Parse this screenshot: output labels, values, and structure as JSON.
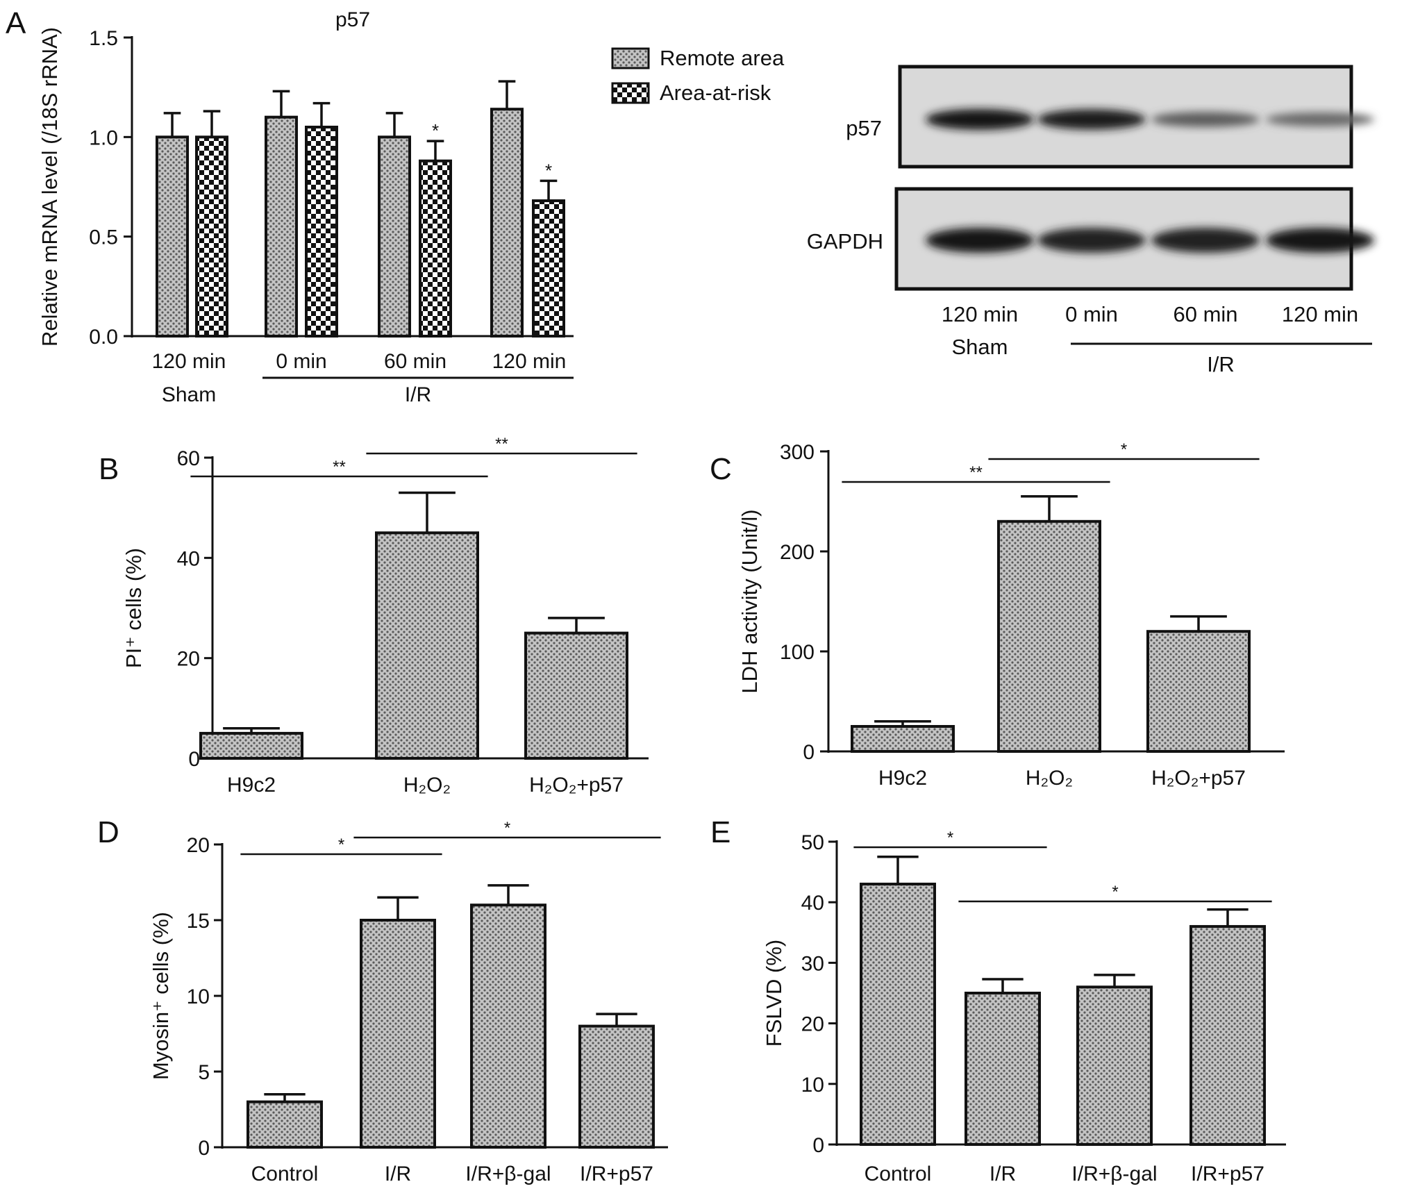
{
  "panel_letters": [
    "A",
    "B",
    "C",
    "D",
    "E"
  ],
  "blot": {
    "rows": [
      {
        "label": "p57",
        "intensity": [
          1.0,
          0.95,
          0.45,
          0.35
        ]
      },
      {
        "label": "GAPDH",
        "intensity": [
          1.0,
          0.9,
          0.9,
          1.0
        ]
      }
    ],
    "lanes": [
      "120 min",
      "0 min",
      "60 min",
      "120 min"
    ],
    "group_sham": "Sham",
    "group_ir": "I/R"
  },
  "chart_data": [
    {
      "panel": "A",
      "type": "bar",
      "title": "p57",
      "ylabel": "Relative mRNA level (/18S rRNA)",
      "ylim": [
        0,
        1.5
      ],
      "yticks": [
        "0.0",
        "0.5",
        "1.0",
        "1.5"
      ],
      "categories": [
        "120 min",
        "0 min",
        "60 min",
        "120 min"
      ],
      "groups": [
        {
          "label": "Sham",
          "from": 0,
          "to": 0
        },
        {
          "label": "I/R",
          "from": 1,
          "to": 3
        }
      ],
      "series": [
        {
          "name": "Remote area",
          "values": [
            1.0,
            1.1,
            1.0,
            1.14
          ],
          "errors": [
            0.12,
            0.13,
            0.12,
            0.14
          ],
          "sig": [
            "",
            "",
            "",
            ""
          ]
        },
        {
          "name": "Area-at-risk",
          "values": [
            1.0,
            1.05,
            0.88,
            0.68
          ],
          "errors": [
            0.13,
            0.12,
            0.1,
            0.1
          ],
          "sig": [
            "",
            "",
            "*",
            "*"
          ]
        }
      ],
      "legend": "top-right"
    },
    {
      "panel": "B",
      "type": "bar",
      "ylabel": "PI⁺ cells (%)",
      "ylim": [
        0,
        60
      ],
      "yticks": [
        "0",
        "20",
        "40",
        "60"
      ],
      "categories": [
        "H9c2",
        "H₂O₂",
        "H₂O₂+p57"
      ],
      "values": [
        5,
        45,
        25
      ],
      "errors": [
        1,
        8,
        3
      ],
      "comparisons": [
        {
          "from": 0,
          "to": 1,
          "label": "**"
        },
        {
          "from": 1,
          "to": 2,
          "label": "**"
        }
      ]
    },
    {
      "panel": "C",
      "type": "bar",
      "ylabel": "LDH activity (Unit/l)",
      "ylim": [
        0,
        300
      ],
      "yticks": [
        "0",
        "100",
        "200",
        "300"
      ],
      "categories": [
        "H9c2",
        "H₂O₂",
        "H₂O₂+p57"
      ],
      "values": [
        25,
        230,
        120
      ],
      "errors": [
        5,
        25,
        15
      ],
      "comparisons": [
        {
          "from": 0,
          "to": 1,
          "label": "**"
        },
        {
          "from": 1,
          "to": 2,
          "label": "*"
        }
      ]
    },
    {
      "panel": "D",
      "type": "bar",
      "ylabel": "Myosin⁺ cells (%)",
      "ylim": [
        0,
        20
      ],
      "yticks": [
        "0",
        "5",
        "10",
        "15",
        "20"
      ],
      "categories": [
        "Control",
        "I/R",
        "I/R+β-gal",
        "I/R+p57"
      ],
      "values": [
        3,
        15,
        16,
        8
      ],
      "errors": [
        0.5,
        1.5,
        1.3,
        0.8
      ],
      "comparisons": [
        {
          "from": 0,
          "to": 1,
          "label": "*"
        },
        {
          "from": 1,
          "to": 3,
          "label": "*"
        }
      ]
    },
    {
      "panel": "E",
      "type": "bar",
      "ylabel": "FSLVD (%)",
      "ylim": [
        0,
        50
      ],
      "yticks": [
        "0",
        "10",
        "20",
        "30",
        "40",
        "50"
      ],
      "categories": [
        "Control",
        "I/R",
        "I/R+β-gal",
        "I/R+p57"
      ],
      "values": [
        43,
        25,
        26,
        36
      ],
      "errors": [
        4.5,
        2.3,
        2.0,
        2.8
      ],
      "comparisons": [
        {
          "from": 0,
          "to": 1,
          "label": "*"
        },
        {
          "from": 1,
          "to": 3,
          "label": "*"
        }
      ]
    }
  ]
}
